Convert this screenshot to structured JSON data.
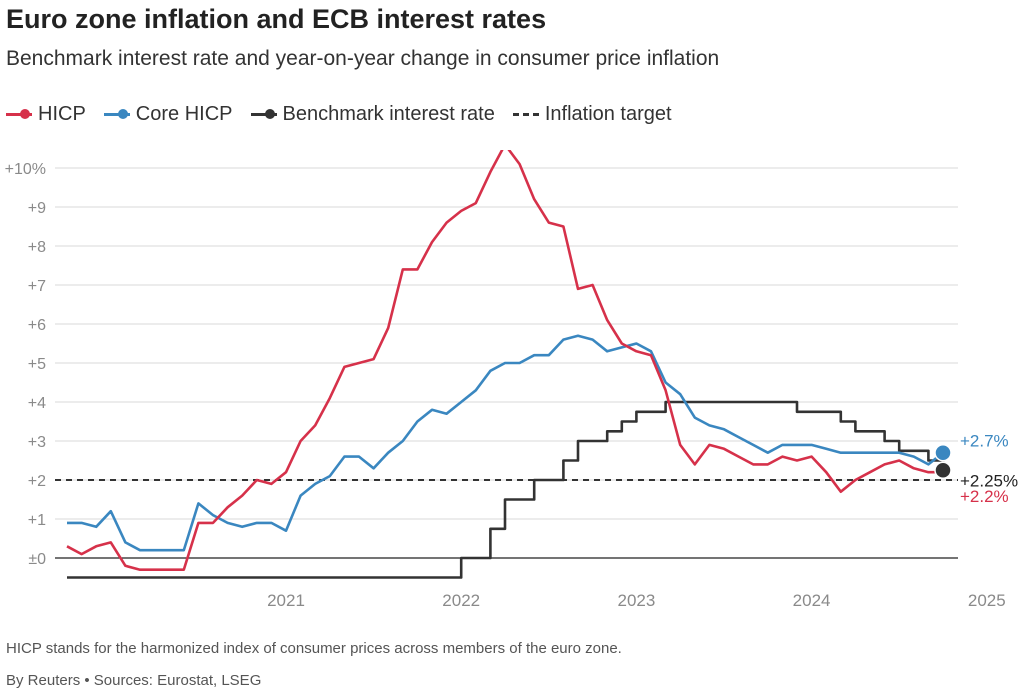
{
  "title": "Euro zone inflation and ECB interest rates",
  "subtitle": "Benchmark interest rate and year-on-year change in consumer price inflation",
  "legend": [
    {
      "label": "HICP",
      "color": "#d6314a",
      "style": "line-dot"
    },
    {
      "label": "Core HICP",
      "color": "#3a87c0",
      "style": "line-dot"
    },
    {
      "label": "Benchmark interest rate",
      "color": "#333333",
      "style": "line-dot"
    },
    {
      "label": "Inflation target",
      "color": "#333333",
      "style": "dashed"
    }
  ],
  "footnote": "HICP stands for the harmonized index of consumer prices across members of the euro zone.",
  "source": "By Reuters • Sources: Eurostat, LSEG",
  "chart_data": {
    "type": "line",
    "title": "Euro zone inflation and ECB interest rates",
    "x_range": [
      "2020-04",
      "2025-04"
    ],
    "ylim": [
      -0.5,
      10.5
    ],
    "grid": true,
    "y_ticks": [
      {
        "value": 0,
        "label": "±0"
      },
      {
        "value": 1,
        "label": "+1"
      },
      {
        "value": 2,
        "label": "+2"
      },
      {
        "value": 3,
        "label": "+3"
      },
      {
        "value": 4,
        "label": "+4"
      },
      {
        "value": 5,
        "label": "+5"
      },
      {
        "value": 6,
        "label": "+6"
      },
      {
        "value": 7,
        "label": "+7"
      },
      {
        "value": 8,
        "label": "+8"
      },
      {
        "value": 9,
        "label": "+9"
      },
      {
        "value": 10,
        "label": "+10%"
      }
    ],
    "x_ticks": [
      {
        "value": "2021-01",
        "label": "2021"
      },
      {
        "value": "2022-01",
        "label": "2022"
      },
      {
        "value": "2023-01",
        "label": "2023"
      },
      {
        "value": "2024-01",
        "label": "2024"
      },
      {
        "value": "2025-01",
        "label": "2025"
      }
    ],
    "inflation_target": {
      "value": 2.0,
      "color": "#333333"
    },
    "series": [
      {
        "name": "HICP",
        "color": "#d6314a",
        "end_label": "+2.2%",
        "values": [
          [
            "2020-04",
            0.3
          ],
          [
            "2020-05",
            0.1
          ],
          [
            "2020-06",
            0.3
          ],
          [
            "2020-07",
            0.4
          ],
          [
            "2020-08",
            -0.2
          ],
          [
            "2020-09",
            -0.3
          ],
          [
            "2020-10",
            -0.3
          ],
          [
            "2020-11",
            -0.3
          ],
          [
            "2020-12",
            -0.3
          ],
          [
            "2021-01",
            0.9
          ],
          [
            "2021-02",
            0.9
          ],
          [
            "2021-03",
            1.3
          ],
          [
            "2021-04",
            1.6
          ],
          [
            "2021-05",
            2.0
          ],
          [
            "2021-06",
            1.9
          ],
          [
            "2021-07",
            2.2
          ],
          [
            "2021-08",
            3.0
          ],
          [
            "2021-09",
            3.4
          ],
          [
            "2021-10",
            4.1
          ],
          [
            "2021-11",
            4.9
          ],
          [
            "2021-12",
            5.0
          ],
          [
            "2022-01",
            5.1
          ],
          [
            "2022-02",
            5.9
          ],
          [
            "2022-03",
            7.4
          ],
          [
            "2022-04",
            7.4
          ],
          [
            "2022-05",
            8.1
          ],
          [
            "2022-06",
            8.6
          ],
          [
            "2022-07",
            8.9
          ],
          [
            "2022-08",
            9.1
          ],
          [
            "2022-09",
            9.9
          ],
          [
            "2022-10",
            10.6
          ],
          [
            "2022-11",
            10.1
          ],
          [
            "2022-12",
            9.2
          ],
          [
            "2023-01",
            8.6
          ],
          [
            "2023-02",
            8.5
          ],
          [
            "2023-03",
            6.9
          ],
          [
            "2023-04",
            7.0
          ],
          [
            "2023-05",
            6.1
          ],
          [
            "2023-06",
            5.5
          ],
          [
            "2023-07",
            5.3
          ],
          [
            "2023-08",
            5.2
          ],
          [
            "2023-09",
            4.3
          ],
          [
            "2023-10",
            2.9
          ],
          [
            "2023-11",
            2.4
          ],
          [
            "2023-12",
            2.9
          ],
          [
            "2024-01",
            2.8
          ],
          [
            "2024-02",
            2.6
          ],
          [
            "2024-03",
            2.4
          ],
          [
            "2024-04",
            2.4
          ],
          [
            "2024-05",
            2.6
          ],
          [
            "2024-06",
            2.5
          ],
          [
            "2024-07",
            2.6
          ],
          [
            "2024-08",
            2.2
          ],
          [
            "2024-09",
            1.7
          ],
          [
            "2024-10",
            2.0
          ],
          [
            "2024-11",
            2.2
          ],
          [
            "2024-12",
            2.4
          ],
          [
            "2025-01",
            2.5
          ],
          [
            "2025-02",
            2.3
          ],
          [
            "2025-03",
            2.2
          ],
          [
            "2025-04",
            2.2
          ]
        ]
      },
      {
        "name": "Core HICP",
        "color": "#3a87c0",
        "end_label": "+2.7%",
        "values": [
          [
            "2020-04",
            0.9
          ],
          [
            "2020-05",
            0.9
          ],
          [
            "2020-06",
            0.8
          ],
          [
            "2020-07",
            1.2
          ],
          [
            "2020-08",
            0.4
          ],
          [
            "2020-09",
            0.2
          ],
          [
            "2020-10",
            0.2
          ],
          [
            "2020-11",
            0.2
          ],
          [
            "2020-12",
            0.2
          ],
          [
            "2021-01",
            1.4
          ],
          [
            "2021-02",
            1.1
          ],
          [
            "2021-03",
            0.9
          ],
          [
            "2021-04",
            0.8
          ],
          [
            "2021-05",
            0.9
          ],
          [
            "2021-06",
            0.9
          ],
          [
            "2021-07",
            0.7
          ],
          [
            "2021-08",
            1.6
          ],
          [
            "2021-09",
            1.9
          ],
          [
            "2021-10",
            2.1
          ],
          [
            "2021-11",
            2.6
          ],
          [
            "2021-12",
            2.6
          ],
          [
            "2022-01",
            2.3
          ],
          [
            "2022-02",
            2.7
          ],
          [
            "2022-03",
            3.0
          ],
          [
            "2022-04",
            3.5
          ],
          [
            "2022-05",
            3.8
          ],
          [
            "2022-06",
            3.7
          ],
          [
            "2022-07",
            4.0
          ],
          [
            "2022-08",
            4.3
          ],
          [
            "2022-09",
            4.8
          ],
          [
            "2022-10",
            5.0
          ],
          [
            "2022-11",
            5.0
          ],
          [
            "2022-12",
            5.2
          ],
          [
            "2023-01",
            5.2
          ],
          [
            "2023-02",
            5.6
          ],
          [
            "2023-03",
            5.7
          ],
          [
            "2023-04",
            5.6
          ],
          [
            "2023-05",
            5.3
          ],
          [
            "2023-06",
            5.4
          ],
          [
            "2023-07",
            5.5
          ],
          [
            "2023-08",
            5.3
          ],
          [
            "2023-09",
            4.5
          ],
          [
            "2023-10",
            4.2
          ],
          [
            "2023-11",
            3.6
          ],
          [
            "2023-12",
            3.4
          ],
          [
            "2024-01",
            3.3
          ],
          [
            "2024-02",
            3.1
          ],
          [
            "2024-03",
            2.9
          ],
          [
            "2024-04",
            2.7
          ],
          [
            "2024-05",
            2.9
          ],
          [
            "2024-06",
            2.9
          ],
          [
            "2024-07",
            2.9
          ],
          [
            "2024-08",
            2.8
          ],
          [
            "2024-09",
            2.7
          ],
          [
            "2024-10",
            2.7
          ],
          [
            "2024-11",
            2.7
          ],
          [
            "2024-12",
            2.7
          ],
          [
            "2025-01",
            2.7
          ],
          [
            "2025-02",
            2.6
          ],
          [
            "2025-03",
            2.4
          ],
          [
            "2025-04",
            2.7
          ]
        ]
      },
      {
        "name": "Benchmark interest rate",
        "color": "#333333",
        "step": true,
        "end_label": "+2.25%",
        "values": [
          [
            "2020-04",
            -0.5
          ],
          [
            "2022-07",
            -0.5
          ],
          [
            "2022-07",
            0.0
          ],
          [
            "2022-09",
            0.0
          ],
          [
            "2022-09",
            0.75
          ],
          [
            "2022-10",
            0.75
          ],
          [
            "2022-10",
            1.5
          ],
          [
            "2022-12",
            1.5
          ],
          [
            "2022-12",
            2.0
          ],
          [
            "2023-02",
            2.0
          ],
          [
            "2023-02",
            2.5
          ],
          [
            "2023-03",
            2.5
          ],
          [
            "2023-03",
            3.0
          ],
          [
            "2023-05",
            3.0
          ],
          [
            "2023-05",
            3.25
          ],
          [
            "2023-06",
            3.25
          ],
          [
            "2023-06",
            3.5
          ],
          [
            "2023-07",
            3.5
          ],
          [
            "2023-07",
            3.75
          ],
          [
            "2023-09",
            3.75
          ],
          [
            "2023-09",
            4.0
          ],
          [
            "2024-06",
            4.0
          ],
          [
            "2024-06",
            3.75
          ],
          [
            "2024-09",
            3.75
          ],
          [
            "2024-09",
            3.5
          ],
          [
            "2024-10",
            3.5
          ],
          [
            "2024-10",
            3.25
          ],
          [
            "2024-12",
            3.25
          ],
          [
            "2024-12",
            3.0
          ],
          [
            "2025-01",
            3.0
          ],
          [
            "2025-01",
            2.75
          ],
          [
            "2025-03",
            2.75
          ],
          [
            "2025-03",
            2.5
          ],
          [
            "2025-04",
            2.5
          ],
          [
            "2025-04",
            2.25
          ]
        ]
      }
    ]
  }
}
